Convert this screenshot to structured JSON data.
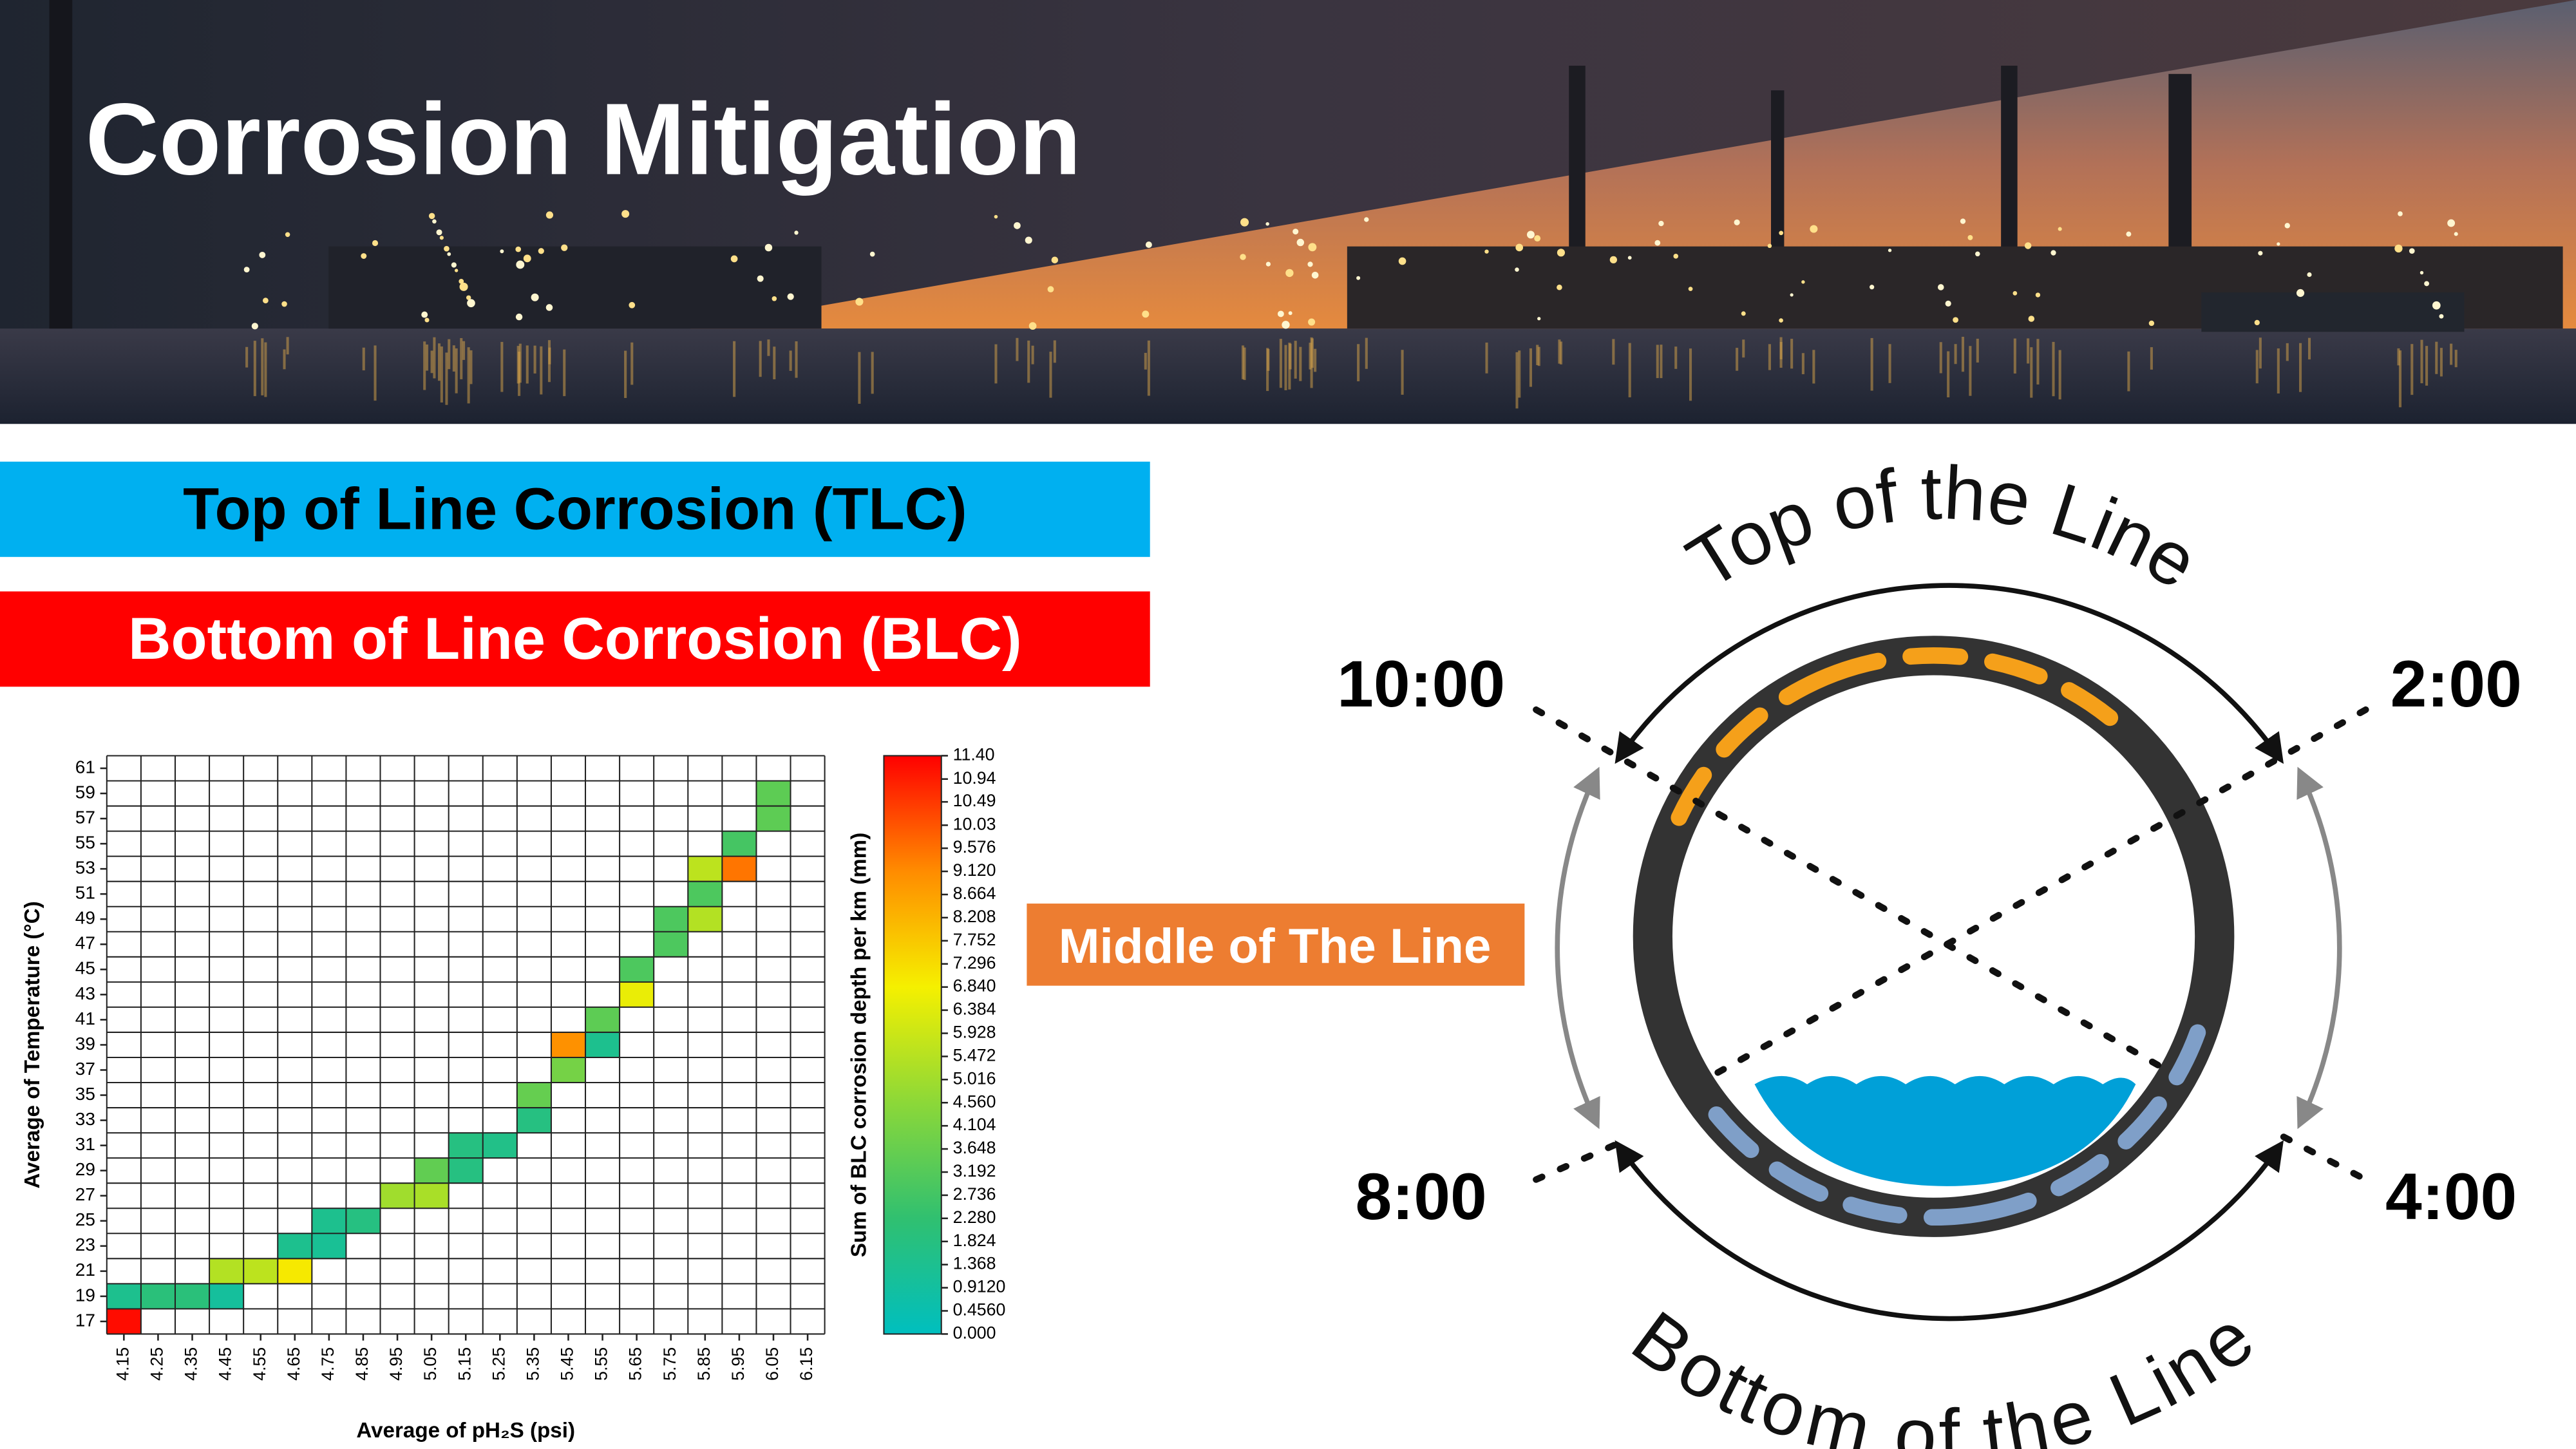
{
  "header": {
    "title": "Corrosion Mitigation"
  },
  "labels": {
    "tlc": "Top of Line Corrosion (TLC)",
    "blc": "Bottom of Line Corrosion (BLC)",
    "middle": "Middle of The Line",
    "top": "Top of the Line",
    "bottom": "Bottom of the Line",
    "clock": [
      "10:00",
      "2:00",
      "8:00",
      "4:00"
    ]
  },
  "chart_data": {
    "type": "heatmap",
    "x_label": "Average of pH₂S (psi)",
    "y_label": "Average of Temperature (°C)",
    "x_categories": [
      4.15,
      4.25,
      4.35,
      4.45,
      4.55,
      4.65,
      4.75,
      4.85,
      4.95,
      5.05,
      5.15,
      5.25,
      5.35,
      5.45,
      5.55,
      5.65,
      5.75,
      5.85,
      5.95,
      6.05,
      6.15
    ],
    "y_categories": [
      17,
      19,
      21,
      23,
      25,
      27,
      29,
      31,
      33,
      35,
      37,
      39,
      41,
      43,
      45,
      47,
      49,
      51,
      53,
      55,
      57,
      59,
      61
    ],
    "cells": [
      {
        "x": 4.15,
        "y": 17,
        "value": 11.2
      },
      {
        "x": 4.15,
        "y": 19,
        "value": 1.4
      },
      {
        "x": 4.25,
        "y": 19,
        "value": 2.0
      },
      {
        "x": 4.35,
        "y": 19,
        "value": 2.0
      },
      {
        "x": 4.45,
        "y": 19,
        "value": 1.0
      },
      {
        "x": 4.45,
        "y": 21,
        "value": 5.4
      },
      {
        "x": 4.55,
        "y": 21,
        "value": 5.6
      },
      {
        "x": 4.65,
        "y": 21,
        "value": 7.0
      },
      {
        "x": 4.65,
        "y": 23,
        "value": 1.4
      },
      {
        "x": 4.75,
        "y": 23,
        "value": 1.2
      },
      {
        "x": 4.75,
        "y": 25,
        "value": 1.4
      },
      {
        "x": 4.85,
        "y": 25,
        "value": 1.8
      },
      {
        "x": 4.95,
        "y": 27,
        "value": 5.0
      },
      {
        "x": 5.05,
        "y": 27,
        "value": 5.2
      },
      {
        "x": 5.05,
        "y": 29,
        "value": 3.5
      },
      {
        "x": 5.15,
        "y": 29,
        "value": 1.8
      },
      {
        "x": 5.15,
        "y": 31,
        "value": 1.8
      },
      {
        "x": 5.25,
        "y": 31,
        "value": 1.6
      },
      {
        "x": 5.35,
        "y": 33,
        "value": 1.8
      },
      {
        "x": 5.35,
        "y": 35,
        "value": 3.6
      },
      {
        "x": 5.45,
        "y": 37,
        "value": 4.0
      },
      {
        "x": 5.45,
        "y": 39,
        "value": 9.0
      },
      {
        "x": 5.55,
        "y": 39,
        "value": 1.4
      },
      {
        "x": 5.55,
        "y": 41,
        "value": 3.4
      },
      {
        "x": 5.65,
        "y": 43,
        "value": 6.6
      },
      {
        "x": 5.65,
        "y": 45,
        "value": 3.0
      },
      {
        "x": 5.75,
        "y": 47,
        "value": 3.0
      },
      {
        "x": 5.75,
        "y": 49,
        "value": 3.0
      },
      {
        "x": 5.85,
        "y": 49,
        "value": 5.4
      },
      {
        "x": 5.85,
        "y": 51,
        "value": 3.0
      },
      {
        "x": 5.85,
        "y": 53,
        "value": 5.6
      },
      {
        "x": 5.95,
        "y": 53,
        "value": 9.5
      },
      {
        "x": 5.95,
        "y": 55,
        "value": 2.8
      },
      {
        "x": 6.05,
        "y": 57,
        "value": 3.4
      },
      {
        "x": 6.05,
        "y": 59,
        "value": 3.4
      }
    ],
    "colorbar_label": "Sum of BLC corrosion depth per km (mm)",
    "colorbar_lim": [
      0,
      11.4
    ],
    "colorbar_ticks": [
      {
        "value": 0,
        "label": "0.000"
      },
      {
        "value": 0.456,
        "label": "0.4560"
      },
      {
        "value": 0.912,
        "label": "0.9120"
      },
      1.368,
      1.824,
      {
        "value": 2.28,
        "label": "2.280"
      },
      2.736,
      3.192,
      3.648,
      4.104,
      {
        "value": 4.56,
        "label": "4.560"
      },
      5.016,
      5.472,
      5.928,
      6.384,
      {
        "value": 6.84,
        "label": "6.840"
      },
      7.296,
      7.752,
      8.208,
      8.664,
      {
        "value": 9.12,
        "label": "9.120"
      },
      9.576,
      10.03,
      10.49,
      10.94,
      {
        "value": 11.4,
        "label": "11.40"
      }
    ],
    "colormap": [
      "#00bfbf",
      "#30c070",
      "#8cd838",
      "#f5f000",
      "#ff8c00",
      "#ff0000"
    ]
  }
}
